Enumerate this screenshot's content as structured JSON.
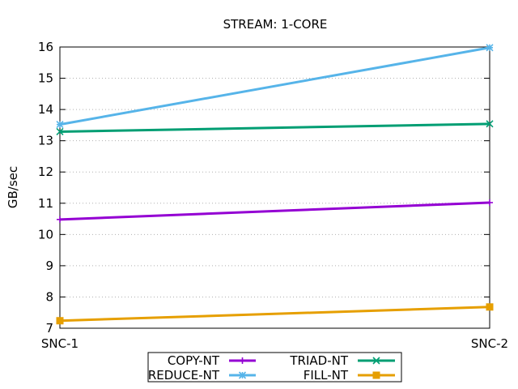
{
  "chart_data": {
    "type": "line",
    "title": "STREAM: 1-CORE",
    "xlabel": "",
    "ylabel": "GB/sec",
    "categories": [
      "SNC-1",
      "SNC-2"
    ],
    "ylim": [
      7,
      16
    ],
    "yticks": [
      7,
      8,
      9,
      10,
      11,
      12,
      13,
      14,
      15,
      16
    ],
    "grid": true,
    "legend_position": "bottom-center",
    "series": [
      {
        "name": "COPY-NT",
        "values": [
          10.48,
          11.02
        ],
        "color": "#9400d3",
        "marker": "plus"
      },
      {
        "name": "TRIAD-NT",
        "values": [
          13.29,
          13.54
        ],
        "color": "#009e73",
        "marker": "cross"
      },
      {
        "name": "REDUCE-NT",
        "values": [
          13.52,
          15.98
        ],
        "color": "#56b4e9",
        "marker": "asterisk"
      },
      {
        "name": "FILL-NT",
        "values": [
          7.24,
          7.68
        ],
        "color": "#e69f00",
        "marker": "square"
      }
    ]
  }
}
